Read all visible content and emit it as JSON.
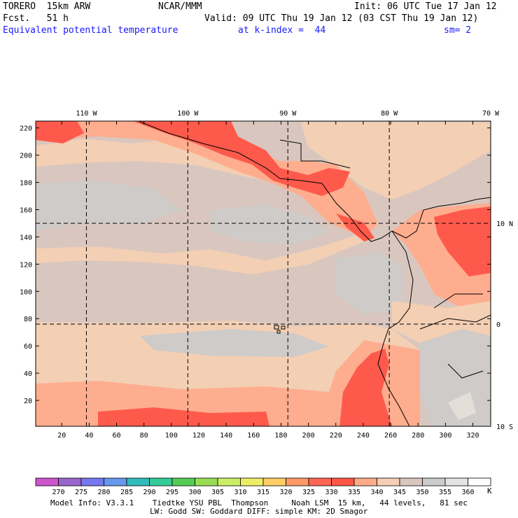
{
  "header": {
    "model": "TORERO  15km ARW",
    "center": "NCAR/MMM",
    "init": "Init: 06 UTC Tue 17 Jan 12",
    "fcst": "Fcst.   51 h",
    "valid": "Valid: 09 UTC Thu 19 Jan 12 (03 CST Thu 19 Jan 12)",
    "field": "Equivalent potential temperature",
    "level": "at k-index =  44",
    "smoothing": "sm= 2"
  },
  "map": {
    "lon_labels": [
      {
        "text": "110 W",
        "grid_x": 38
      },
      {
        "text": "100 W",
        "grid_x": 112
      },
      {
        "text": "90 W",
        "grid_x": 185
      },
      {
        "text": "80 W",
        "grid_x": 259
      },
      {
        "text": "70 W",
        "grid_x": 333
      }
    ],
    "lat_labels": [
      {
        "text": "10 N",
        "grid_y": 150
      },
      {
        "text": "0",
        "grid_y": 76
      },
      {
        "text": "10 S",
        "grid_y": 1
      }
    ],
    "x_ticks": [
      "20",
      "40",
      "60",
      "80",
      "100",
      "120",
      "140",
      "160",
      "180",
      "200",
      "220",
      "240",
      "260",
      "280",
      "300",
      "320"
    ],
    "x_tick_values": [
      20,
      40,
      60,
      80,
      100,
      120,
      140,
      160,
      180,
      200,
      220,
      240,
      260,
      280,
      300,
      320
    ],
    "y_ticks": [
      "20",
      "40",
      "60",
      "80",
      "100",
      "120",
      "140",
      "160",
      "180",
      "200",
      "220"
    ],
    "y_tick_values": [
      20,
      40,
      60,
      80,
      100,
      120,
      140,
      160,
      180,
      200,
      220
    ],
    "grid_extent": {
      "x": [
        1,
        333
      ],
      "y": [
        1,
        225
      ]
    }
  },
  "colorbar": {
    "labels": [
      "270",
      "275",
      "280",
      "285",
      "290",
      "295",
      "300",
      "305",
      "310",
      "315",
      "320",
      "325",
      "330",
      "335",
      "340",
      "345",
      "350",
      "355",
      "360"
    ],
    "unit": "K",
    "colors": [
      "#cc55cc",
      "#9966cc",
      "#7777ee",
      "#6699ee",
      "#33bbbb",
      "#33cc99",
      "#55cc55",
      "#99dd55",
      "#ccee66",
      "#eeee66",
      "#ffcc66",
      "#ff9966",
      "#ff6655",
      "#ff5544",
      "#ffaa88",
      "#f5cfb4",
      "#d9c7be",
      "#cccccc",
      "#e4e4e4",
      "#ffffff"
    ]
  },
  "field_colors": {
    "low": "#cecbc9",
    "mid": "#d9c7bf",
    "warm": "#f3cfb4",
    "hot": "#ffad8f",
    "very_hot": "#fe5a4c"
  },
  "footer": {
    "line1": "Model Info: V3.3.1    Tiedtke YSU PBL  Thompson     Noah LSM  15 km,   44 levels,   81 sec",
    "line2": "LW: Godd SW: Goddard DIFF: simple KM: 2D Smagor"
  }
}
